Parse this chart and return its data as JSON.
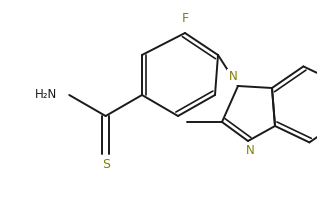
{
  "background_color": "#ffffff",
  "line_color": "#1a1a1a",
  "atom_color_hetero": "#808000",
  "line_width": 1.4,
  "figsize": [
    3.17,
    1.98
  ],
  "dpi": 100,
  "xlim": [
    0,
    317
  ],
  "ylim": [
    0,
    198
  ]
}
